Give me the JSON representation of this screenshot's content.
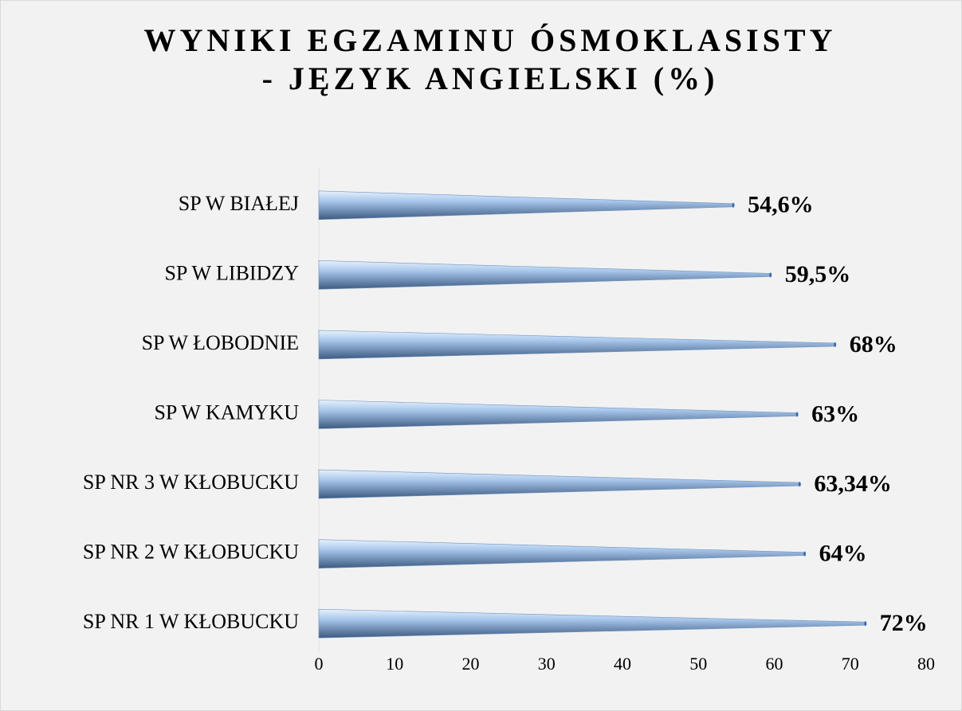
{
  "chart_data": {
    "type": "bar",
    "orientation": "horizontal",
    "title": [
      "WYNIKI EGZAMINU ÓSMOKLASISTY",
      "- JĘZYK ANGIELSKI (%)"
    ],
    "categories": [
      "SP W BIAŁEJ",
      "SP W LIBIDZY",
      "SP W ŁOBODNIE",
      "SP W KAMYKU",
      "SP NR 3 W KŁOBUCKU",
      "SP NR 2 W KŁOBUCKU",
      "SP NR 1 W KŁOBUCKU"
    ],
    "values": [
      54.6,
      59.5,
      68,
      63,
      63.34,
      64,
      72
    ],
    "value_labels": [
      "54,6%",
      "59,5%",
      "68%",
      "63%",
      "63,34%",
      "64%",
      "72%"
    ],
    "color": "#a9c8ec",
    "xlim": [
      0,
      80
    ],
    "xticks": [
      0,
      10,
      20,
      30,
      40,
      50,
      60,
      70,
      80
    ]
  }
}
